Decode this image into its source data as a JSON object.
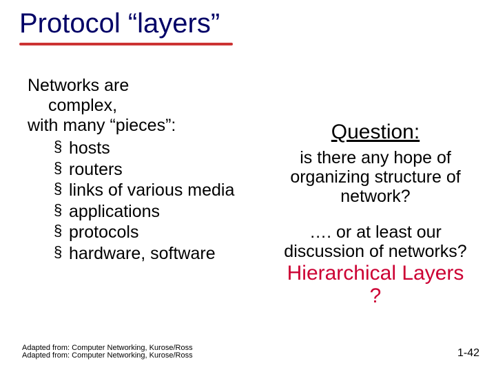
{
  "title": "Protocol “layers”",
  "intro_line1": "Networks are",
  "intro_line2": "complex,",
  "intro_line3": "with many “pieces”:",
  "bullets": [
    "hosts",
    "routers",
    "links of various media",
    "applications",
    "protocols",
    "hardware, software"
  ],
  "question_heading": "Question:",
  "question_body": "is there any hope of organizing structure of network?",
  "question_body2": "…. or at least our discussion of networks?",
  "hierarchical": "Hierarchical Layers",
  "qmark": "?",
  "footer1": "Adapted from: Computer Networking, Kurose/Ross",
  "footer2": "Adapted from: Computer Networking, Kurose/Ross",
  "slidenum": "1-42",
  "colors": {
    "title": "#000066",
    "underline": "#cc3333",
    "accent": "#cc0033",
    "text": "#000000",
    "background": "#ffffff"
  },
  "typography": {
    "title_fontsize": 40,
    "body_fontsize": 25,
    "heading_fontsize": 30,
    "footer_fontsize": 11,
    "slidenum_fontsize": 16
  }
}
